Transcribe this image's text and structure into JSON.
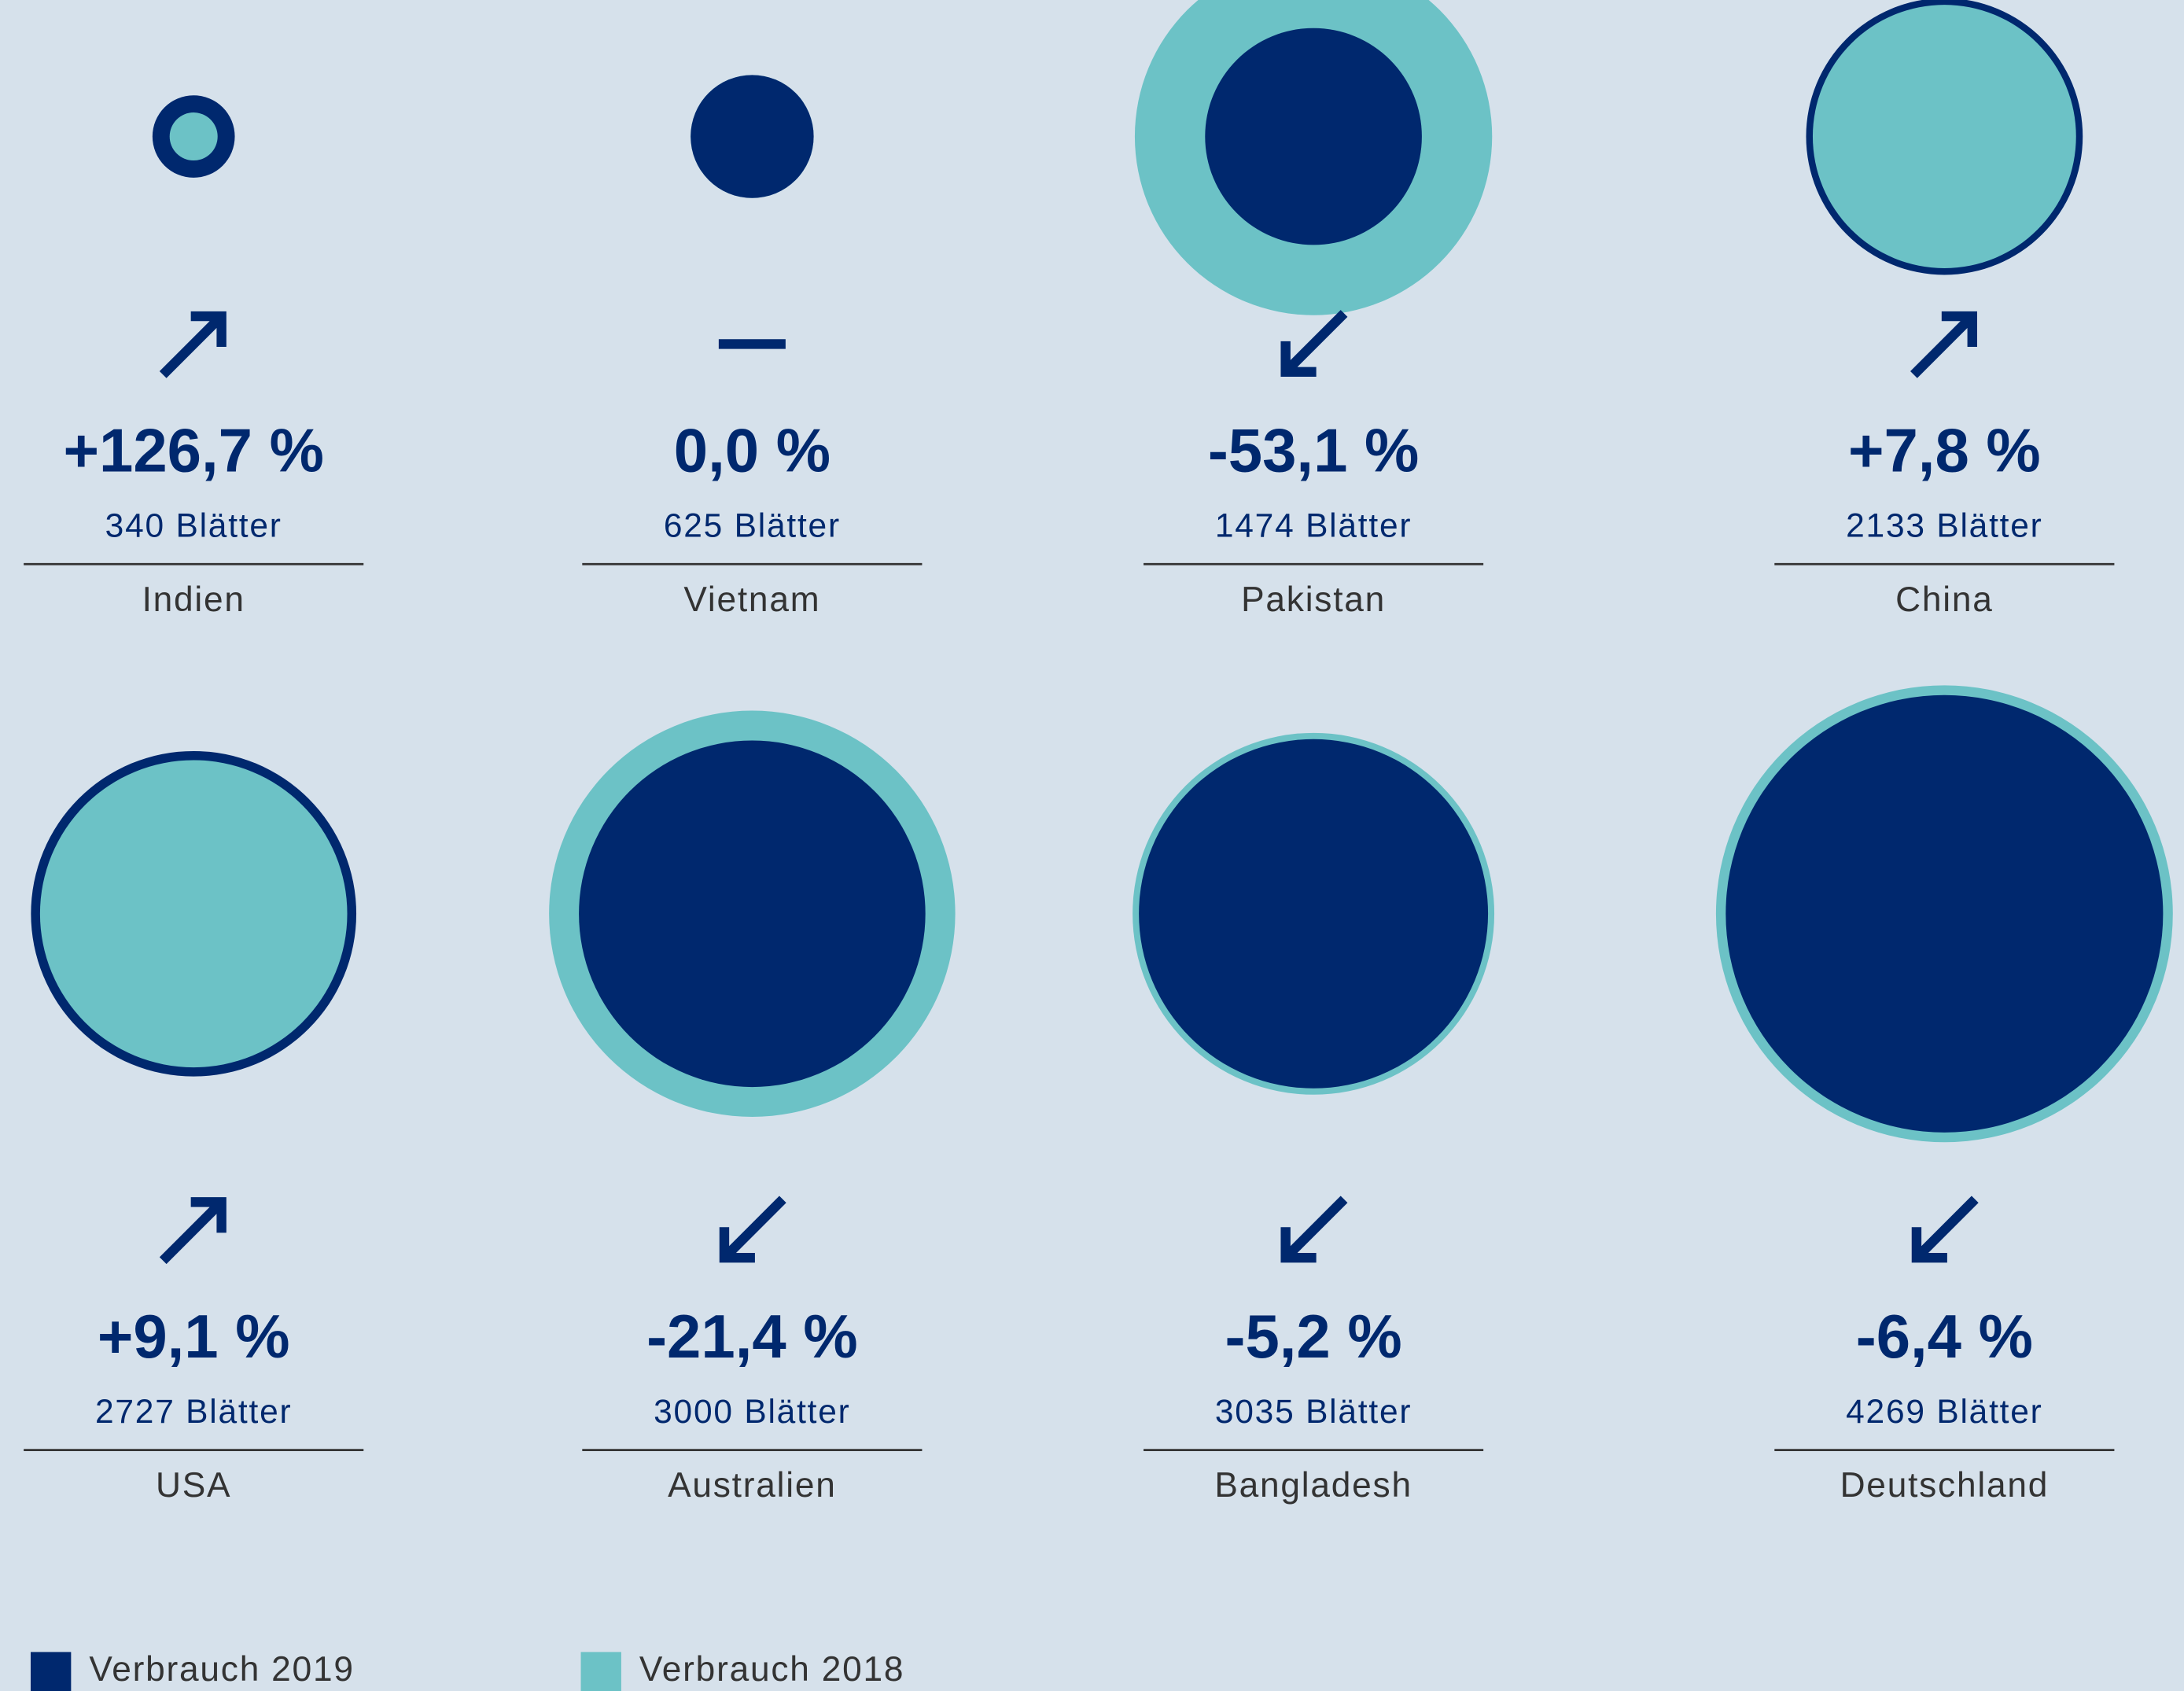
{
  "chart_data": {
    "type": "bubble",
    "categories": [
      "Indien",
      "Vietnam",
      "Pakistan",
      "China",
      "USA",
      "Australien",
      "Bangladesh",
      "Deutschland"
    ],
    "series": [
      {
        "name": "Verbrauch 2019",
        "color": "#00286e",
        "values": [
          340,
          625,
          1474,
          2133,
          2727,
          3000,
          3035,
          4269
        ],
        "value_labels": [
          "340 Blätter",
          "625 Blätter",
          "1474 Blätter",
          "2133 Blätter",
          "2727 Blätter",
          "3000 Blätter",
          "3035 Blätter",
          "4269 Blätter"
        ]
      },
      {
        "name": "Verbrauch 2018",
        "color": "#6cc2c6",
        "values": [
          150,
          625,
          3143,
          1979,
          2500,
          3817,
          3202,
          4561
        ]
      }
    ],
    "change": {
      "values": [
        126.7,
        0.0,
        -53.1,
        7.8,
        9.1,
        -21.4,
        -5.2,
        -6.4
      ],
      "value_labels": [
        "+126,7 %",
        "0,0 %",
        "-53,1 %",
        "+7,8 %",
        "+9,1 %",
        "-21,4 %",
        "-5,2 %",
        "-6,4 %"
      ]
    }
  }
}
